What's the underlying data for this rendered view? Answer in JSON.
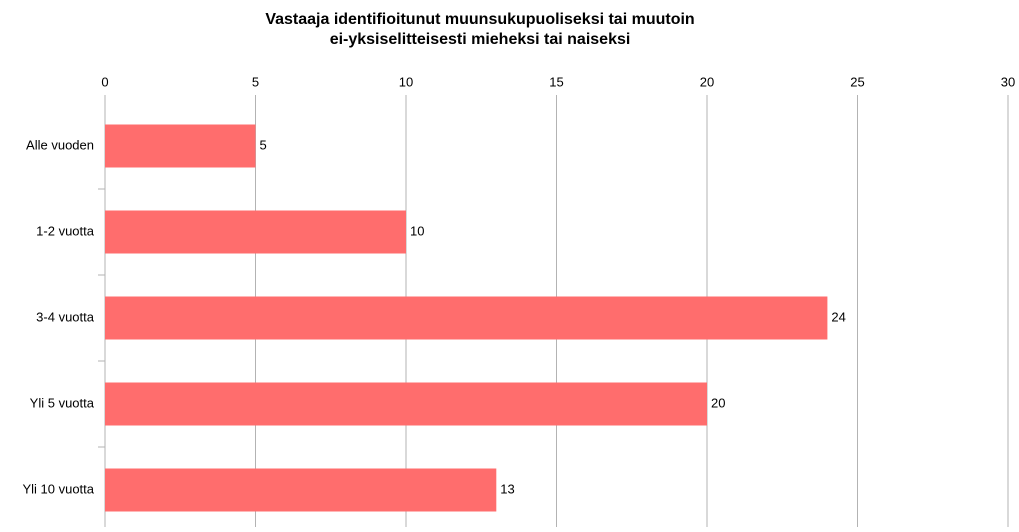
{
  "chart_data": {
    "type": "hbar",
    "title": [
      "Vastaaja identifioitunut muunsukupuoliseksi tai muutoin",
      "ei-yksiselitteisesti mieheksi tai naiseksi"
    ],
    "categories": [
      "Alle vuoden",
      "1-2 vuotta",
      "3-4 vuotta",
      "Yli 5 vuotta",
      "Yli 10 vuotta"
    ],
    "values": [
      5,
      10,
      24,
      20,
      13
    ],
    "color": "#ff6d6d",
    "xlim": [
      0,
      30
    ],
    "xticks": [
      0,
      5,
      10,
      15,
      20,
      25,
      30
    ],
    "grid": true
  }
}
